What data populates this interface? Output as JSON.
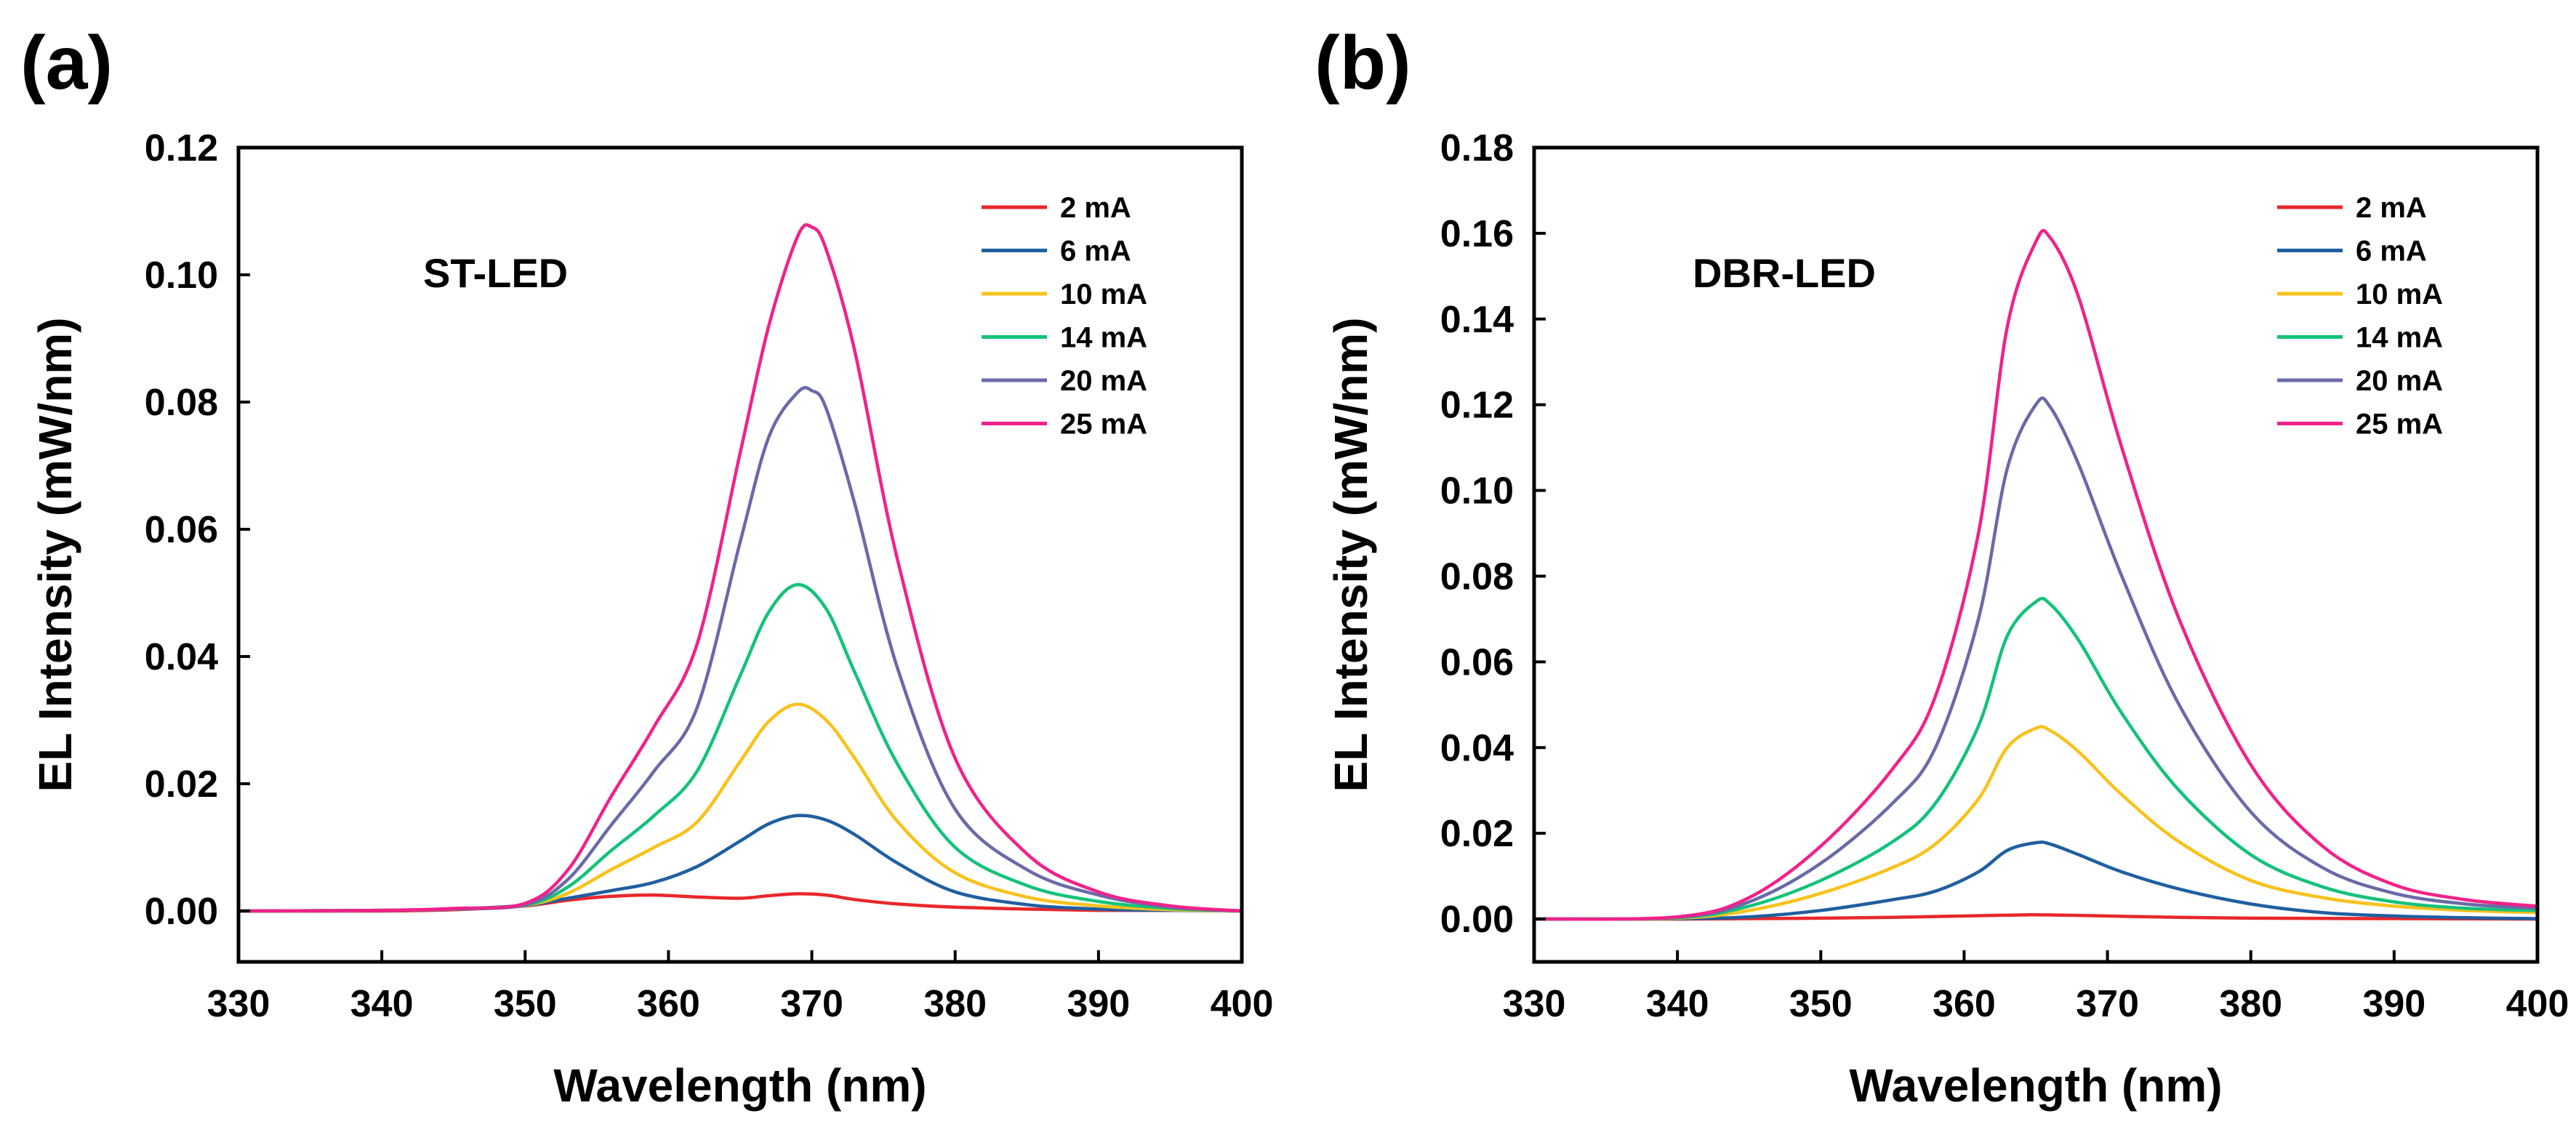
{
  "chart_data": [
    {
      "type": "line",
      "panel_label": "(a)",
      "annotation": "ST-LED",
      "xlabel": "Wavelength (nm)",
      "ylabel": "EL Intensity (mW/nm)",
      "xlim": [
        330,
        400
      ],
      "ylim": [
        -0.008,
        0.12
      ],
      "xticks": [
        330,
        340,
        350,
        360,
        370,
        380,
        390,
        400
      ],
      "xtick_labels": [
        "330",
        "340",
        "350",
        "360",
        "370",
        "380",
        "390",
        "400"
      ],
      "yticks": [
        0.0,
        0.02,
        0.04,
        0.06,
        0.08,
        0.1,
        0.12
      ],
      "ytick_labels": [
        "0.00",
        "0.02",
        "0.04",
        "0.06",
        "0.08",
        "0.10",
        "0.12"
      ],
      "legend_position": "top-right",
      "series": [
        {
          "name": "2 mA",
          "color": "#e8282a",
          "x": [
            330,
            340,
            345,
            350,
            353,
            356,
            359,
            362,
            365,
            367,
            369,
            371,
            373,
            376,
            380,
            385,
            390,
            395,
            400
          ],
          "y": [
            0,
            0,
            0.0002,
            0.0008,
            0.0017,
            0.0023,
            0.0025,
            0.0022,
            0.002,
            0.0024,
            0.0027,
            0.0025,
            0.0018,
            0.0011,
            0.0006,
            0.0003,
            0.0001,
            0.0001,
            0
          ]
        },
        {
          "name": "6 mA",
          "color": "#1f5fa0",
          "x": [
            330,
            340,
            345,
            350,
            353,
            356,
            359,
            362,
            365,
            367,
            369,
            371,
            373,
            376,
            380,
            385,
            390,
            395,
            400
          ],
          "y": [
            0,
            0.0001,
            0.0003,
            0.0009,
            0.002,
            0.0032,
            0.0045,
            0.007,
            0.011,
            0.0137,
            0.015,
            0.0143,
            0.012,
            0.0075,
            0.003,
            0.001,
            0.0003,
            0.0001,
            0
          ]
        },
        {
          "name": "10 mA",
          "color": "#f8c21c",
          "x": [
            330,
            340,
            345,
            350,
            353,
            356,
            359,
            362,
            365,
            367,
            369,
            371,
            373,
            376,
            380,
            385,
            390,
            395,
            400
          ],
          "y": [
            0,
            0.0001,
            0.0003,
            0.0009,
            0.0028,
            0.0065,
            0.01,
            0.014,
            0.0235,
            0.0298,
            0.0325,
            0.03,
            0.024,
            0.014,
            0.006,
            0.0022,
            0.0008,
            0.0002,
            0
          ]
        },
        {
          "name": "14 mA",
          "color": "#14c27a",
          "x": [
            330,
            340,
            345,
            350,
            353,
            356,
            359,
            362,
            365,
            367,
            369,
            371,
            373,
            376,
            380,
            385,
            390,
            395,
            400
          ],
          "y": [
            0,
            0.0001,
            0.0003,
            0.0009,
            0.0038,
            0.0095,
            0.015,
            0.022,
            0.037,
            0.047,
            0.0513,
            0.0475,
            0.0375,
            0.023,
            0.01,
            0.004,
            0.0015,
            0.0004,
            0
          ]
        },
        {
          "name": "20 mA",
          "color": "#6a6aa8",
          "x": [
            330,
            340,
            345,
            350,
            353,
            356,
            359,
            362,
            365,
            367,
            369,
            370,
            371,
            373,
            376,
            380,
            385,
            390,
            395,
            400
          ],
          "y": [
            0,
            0.0001,
            0.0003,
            0.001,
            0.005,
            0.0135,
            0.022,
            0.032,
            0.058,
            0.0745,
            0.0815,
            0.0818,
            0.079,
            0.064,
            0.038,
            0.016,
            0.0065,
            0.0025,
            0.0006,
            0
          ]
        },
        {
          "name": "25 mA",
          "color": "#f0228a",
          "x": [
            330,
            340,
            345,
            350,
            353,
            356,
            359,
            362,
            365,
            367,
            369,
            370,
            371,
            373,
            376,
            380,
            385,
            390,
            395,
            400
          ],
          "y": [
            0,
            0.0001,
            0.0004,
            0.0012,
            0.0065,
            0.018,
            0.029,
            0.042,
            0.072,
            0.092,
            0.106,
            0.1075,
            0.104,
            0.088,
            0.055,
            0.024,
            0.009,
            0.003,
            0.0008,
            0
          ]
        }
      ]
    },
    {
      "type": "line",
      "panel_label": "(b)",
      "annotation": "DBR-LED",
      "xlabel": "Wavelength (nm)",
      "ylabel": "EL Intensity (mW/nm)",
      "xlim": [
        330,
        400
      ],
      "ylim": [
        -0.01,
        0.18
      ],
      "xticks": [
        330,
        340,
        350,
        360,
        370,
        380,
        390,
        400
      ],
      "xtick_labels": [
        "330",
        "340",
        "350",
        "360",
        "370",
        "380",
        "390",
        "400"
      ],
      "yticks": [
        0.0,
        0.02,
        0.04,
        0.06,
        0.08,
        0.1,
        0.12,
        0.14,
        0.16,
        0.18
      ],
      "ytick_labels": [
        "0.00",
        "0.02",
        "0.04",
        "0.06",
        "0.08",
        "0.10",
        "0.12",
        "0.14",
        "0.16",
        "0.18"
      ],
      "legend_position": "top-right",
      "series": [
        {
          "name": "2 mA",
          "color": "#e8282a",
          "x": [
            330,
            340,
            345,
            350,
            355,
            360,
            363,
            365,
            367,
            370,
            375,
            380,
            390,
            400
          ],
          "y": [
            0,
            0,
            0.0001,
            0.0002,
            0.0004,
            0.0007,
            0.0009,
            0.001,
            0.0009,
            0.0007,
            0.0004,
            0.0002,
            0.0001,
            0
          ]
        },
        {
          "name": "6 mA",
          "color": "#1f5fa0",
          "x": [
            330,
            340,
            345,
            350,
            355,
            358,
            361,
            363,
            365,
            366,
            368,
            371,
            375,
            380,
            385,
            390,
            395,
            400
          ],
          "y": [
            0,
            0.0001,
            0.0005,
            0.002,
            0.0045,
            0.0065,
            0.011,
            0.016,
            0.0178,
            0.0175,
            0.015,
            0.011,
            0.007,
            0.0035,
            0.0015,
            0.0007,
            0.0003,
            0.0001
          ]
        },
        {
          "name": "10 mA",
          "color": "#f8c21c",
          "x": [
            330,
            340,
            345,
            350,
            355,
            358,
            361,
            363,
            365,
            366,
            368,
            371,
            375,
            380,
            385,
            390,
            395,
            400
          ],
          "y": [
            0,
            0.0002,
            0.002,
            0.006,
            0.012,
            0.0175,
            0.028,
            0.04,
            0.0445,
            0.044,
            0.039,
            0.029,
            0.018,
            0.009,
            0.005,
            0.003,
            0.002,
            0.0015
          ]
        },
        {
          "name": "14 mA",
          "color": "#14c27a",
          "x": [
            330,
            340,
            345,
            350,
            355,
            358,
            361,
            363,
            365,
            366,
            368,
            371,
            375,
            380,
            385,
            390,
            395,
            400
          ],
          "y": [
            0,
            0.0003,
            0.003,
            0.009,
            0.018,
            0.027,
            0.045,
            0.066,
            0.074,
            0.0735,
            0.065,
            0.048,
            0.03,
            0.015,
            0.0075,
            0.004,
            0.0025,
            0.002
          ]
        },
        {
          "name": "20 mA",
          "color": "#6a6aa8",
          "x": [
            330,
            340,
            345,
            350,
            355,
            358,
            361,
            363,
            365,
            366,
            368,
            371,
            375,
            380,
            385,
            390,
            395,
            400
          ],
          "y": [
            0,
            0.0004,
            0.004,
            0.013,
            0.027,
            0.04,
            0.07,
            0.105,
            0.12,
            0.1195,
            0.106,
            0.08,
            0.05,
            0.025,
            0.012,
            0.006,
            0.0035,
            0.0025
          ]
        },
        {
          "name": "25 mA",
          "color": "#f0228a",
          "x": [
            330,
            340,
            345,
            350,
            355,
            358,
            361,
            363,
            365,
            366,
            368,
            371,
            375,
            380,
            385,
            390,
            395,
            400
          ],
          "y": [
            0,
            0.0005,
            0.005,
            0.017,
            0.035,
            0.052,
            0.09,
            0.138,
            0.158,
            0.159,
            0.145,
            0.11,
            0.07,
            0.036,
            0.017,
            0.008,
            0.0045,
            0.003
          ]
        }
      ]
    }
  ]
}
